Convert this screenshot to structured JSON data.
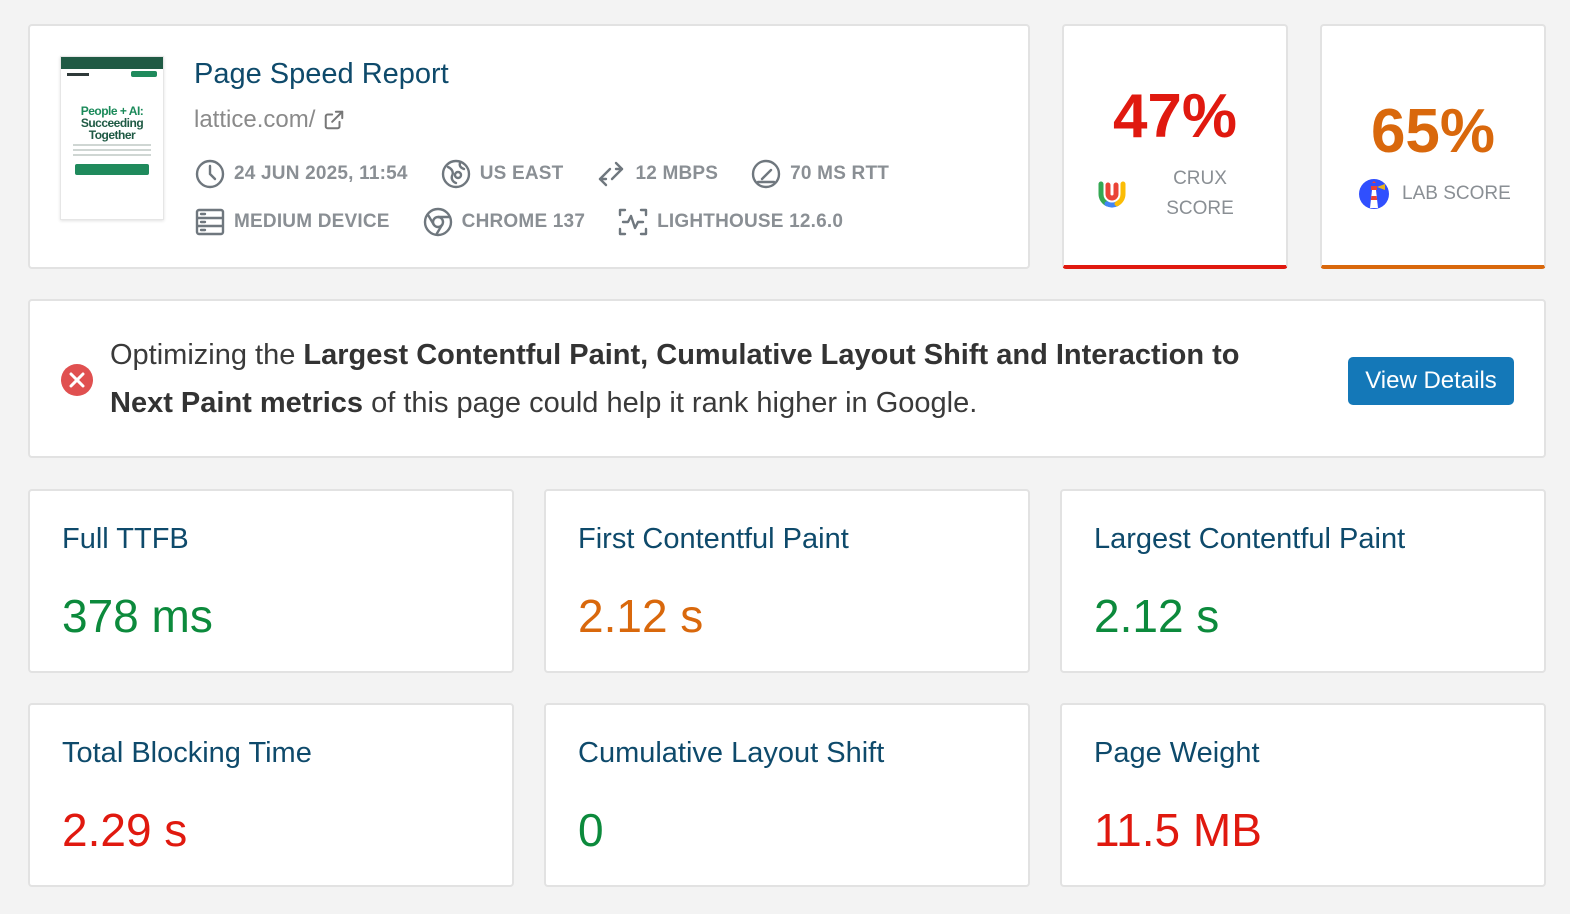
{
  "report": {
    "title": "Page Speed Report",
    "url": "lattice.com/",
    "thumbnail": {
      "line1": "People + AI:",
      "line2": "Succeeding",
      "line3": "Together"
    },
    "meta": {
      "datetime": "24 JUN 2025, 11:54",
      "location": "US EAST",
      "bandwidth": "12 MBPS",
      "rtt": "70 MS RTT",
      "device": "MEDIUM DEVICE",
      "browser": "CHROME 137",
      "lighthouse": "LIGHTHOUSE 12.6.0"
    }
  },
  "scores": {
    "crux": {
      "value": "47%",
      "label_line1": "CRUX",
      "label_line2": "SCORE",
      "color": "#e0190f"
    },
    "lab": {
      "value": "65%",
      "label": "LAB SCORE",
      "color": "#d9680c"
    }
  },
  "alert": {
    "prefix": "Optimizing the ",
    "bold": "Largest Contentful Paint, Cumulative Layout Shift and Interaction to Next Paint metrics",
    "suffix": " of this page could help it rank higher in Google.",
    "button_label": "View Details"
  },
  "metrics": [
    {
      "label": "Full TTFB",
      "value": "378 ms",
      "status": "good"
    },
    {
      "label": "First Contentful Paint",
      "value": "2.12 s",
      "status": "avg"
    },
    {
      "label": "Largest Contentful Paint",
      "value": "2.12 s",
      "status": "good"
    },
    {
      "label": "Total Blocking Time",
      "value": "2.29 s",
      "status": "poor"
    },
    {
      "label": "Cumulative Layout Shift",
      "value": "0",
      "status": "good"
    },
    {
      "label": "Page Weight",
      "value": "11.5 MB",
      "status": "poor"
    }
  ],
  "colors": {
    "good": "#0c8a3c",
    "average": "#d9680c",
    "poor": "#e0190f",
    "title": "#0e4a6b",
    "button": "#1478b8"
  }
}
